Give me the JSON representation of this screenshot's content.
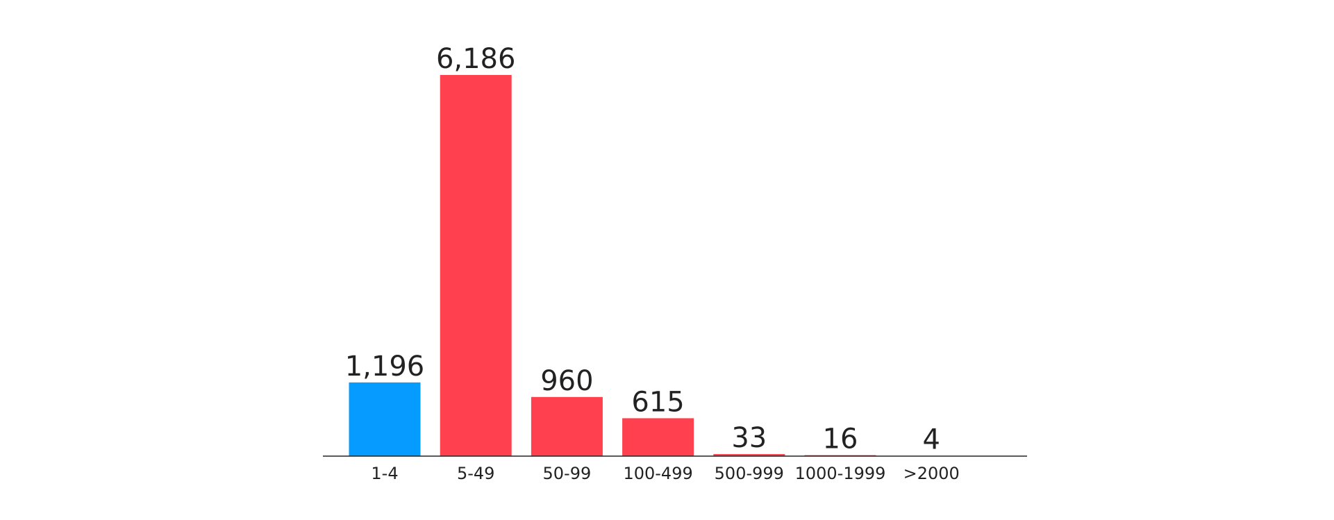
{
  "chart_data": {
    "type": "bar",
    "categories": [
      "1-4",
      "5-49",
      "50-99",
      "100-499",
      "500-999",
      "1000-1999",
      ">2000"
    ],
    "values": [
      1196,
      6186,
      960,
      615,
      33,
      16,
      4
    ],
    "value_labels": [
      "1,196",
      "6,186",
      "960",
      "615",
      "33",
      "16",
      "4"
    ],
    "colors": [
      "#069bff",
      "#ff404e",
      "#ff404e",
      "#ff404e",
      "#ff404e",
      "#ff404e",
      "#ff404e"
    ]
  }
}
